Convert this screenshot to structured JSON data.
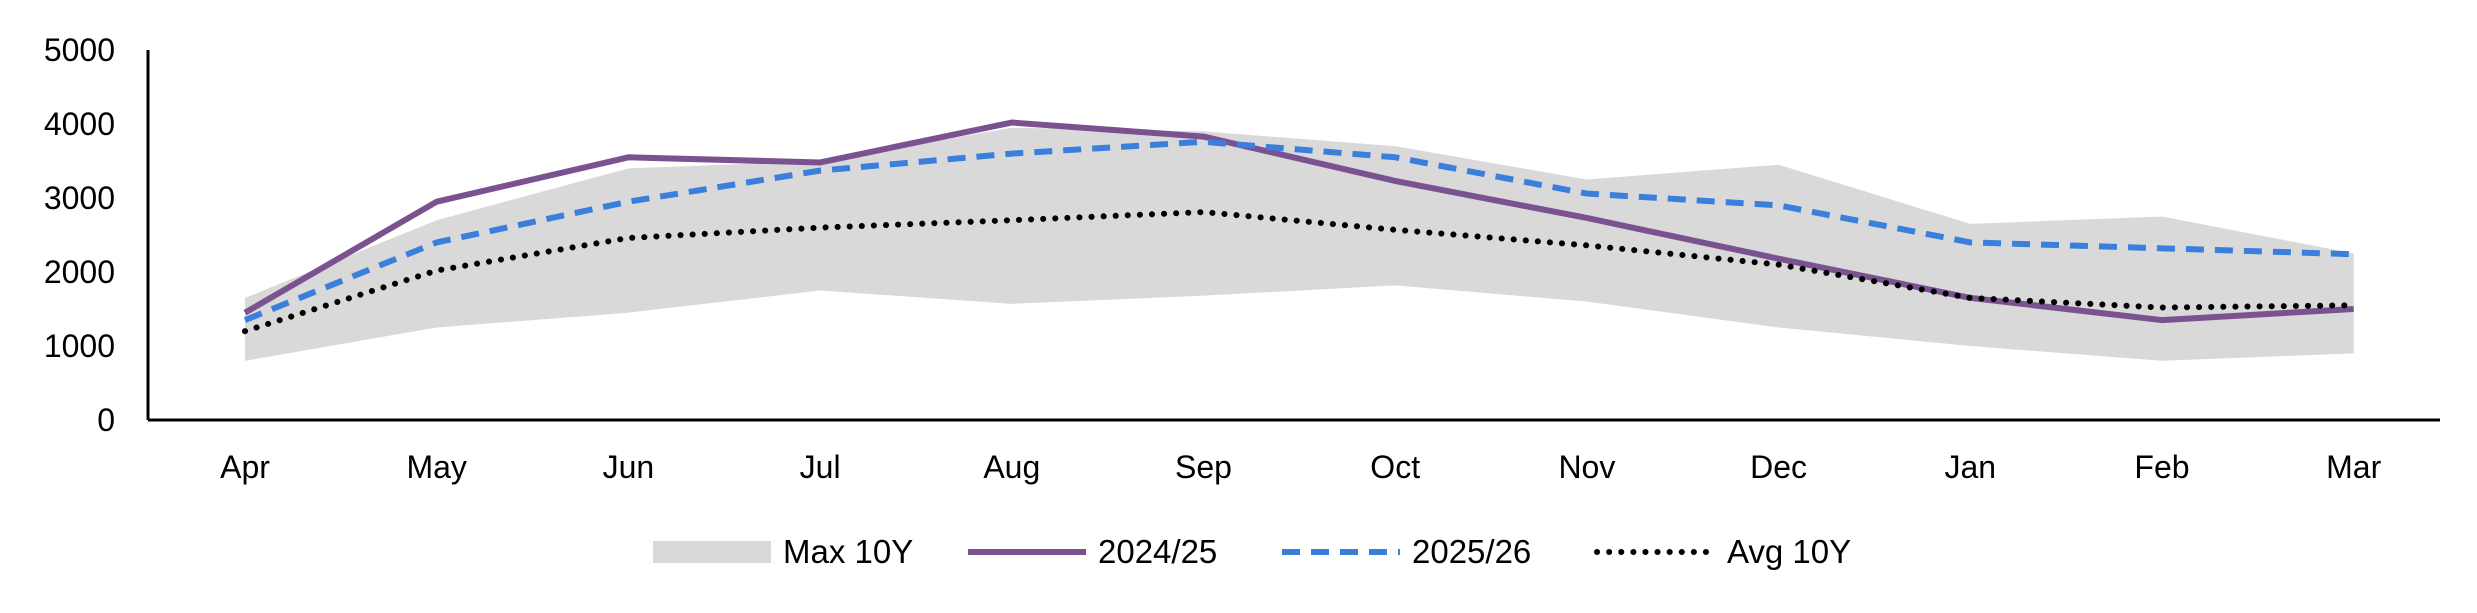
{
  "chart_data": {
    "type": "line",
    "title": "",
    "xlabel": "",
    "ylabel": "",
    "categories": [
      "Apr",
      "May",
      "Jun",
      "Jul",
      "Aug",
      "Sep",
      "Oct",
      "Nov",
      "Dec",
      "Jan",
      "Feb",
      "Mar"
    ],
    "ylim": [
      0,
      5000
    ],
    "yticks": [
      "0",
      "1000",
      "2000",
      "3000",
      "4000",
      "5000"
    ],
    "grid": false,
    "legend_position": "bottom",
    "band": {
      "name": "Max 10Y",
      "color": "#d9d9d9",
      "upper": [
        1650,
        2700,
        3400,
        3500,
        3950,
        3900,
        3700,
        3250,
        3450,
        2650,
        2750,
        2250
      ],
      "lower": [
        800,
        1250,
        1450,
        1750,
        1570,
        1680,
        1820,
        1600,
        1250,
        1000,
        800,
        900
      ]
    },
    "series": [
      {
        "name": "2024/25",
        "color": "#7b5290",
        "style": "solid",
        "values": [
          1450,
          2950,
          3550,
          3480,
          4020,
          3830,
          3230,
          2730,
          2180,
          1650,
          1350,
          1500
        ]
      },
      {
        "name": "2025/26",
        "color": "#3a7fdc",
        "style": "dashed",
        "values": [
          1350,
          2400,
          2950,
          3370,
          3600,
          3760,
          3550,
          3060,
          2900,
          2400,
          2320,
          2240
        ]
      },
      {
        "name": "Avg 10Y",
        "color": "#000000",
        "style": "dotted",
        "values": [
          1200,
          2020,
          2460,
          2600,
          2700,
          2810,
          2570,
          2360,
          2100,
          1650,
          1520,
          1550
        ]
      }
    ]
  }
}
